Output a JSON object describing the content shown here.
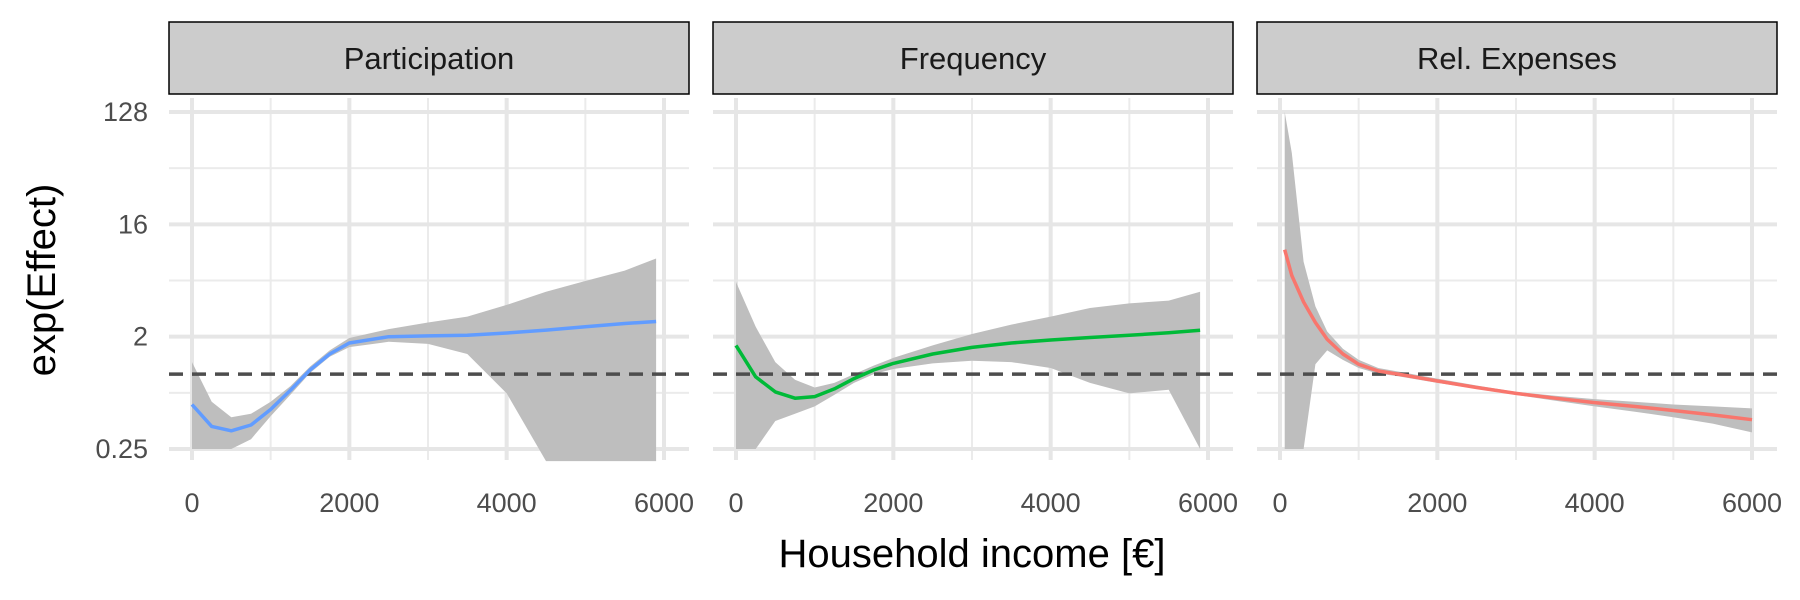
{
  "chart_data": {
    "type": "line",
    "ylabel": "exp(Effect)",
    "xlabel": "Household income [€]",
    "y_scale": "log2",
    "y_ticks": [
      0.25,
      2,
      16,
      128
    ],
    "y_tick_labels": [
      "0.25",
      "2",
      "16",
      "128"
    ],
    "ylim": [
      0.25,
      128
    ],
    "x_ticks": [
      0,
      2000,
      4000,
      6000
    ],
    "x_tick_labels": [
      "0",
      "2000",
      "4000",
      "6000"
    ],
    "xlim": [
      0,
      6000
    ],
    "reference_line": {
      "y": 1,
      "style": "dashed"
    },
    "grid": true,
    "panels": [
      {
        "title": "Participation",
        "color": "#619CFF",
        "x": [
          0,
          250,
          500,
          750,
          1000,
          1250,
          1500,
          1750,
          2000,
          2500,
          3000,
          3500,
          4000,
          4500,
          5000,
          5500,
          5900
        ],
        "y": [
          0.57,
          0.38,
          0.35,
          0.39,
          0.52,
          0.74,
          1.08,
          1.45,
          1.78,
          2.0,
          2.03,
          2.05,
          2.14,
          2.26,
          2.4,
          2.55,
          2.65
        ],
        "lower": [
          0.25,
          0.25,
          0.25,
          0.3,
          0.46,
          0.68,
          1.02,
          1.38,
          1.65,
          1.82,
          1.75,
          1.45,
          0.7,
          0.2,
          0.2,
          0.2,
          0.2
        ],
        "upper": [
          1.25,
          0.6,
          0.45,
          0.48,
          0.6,
          0.8,
          1.15,
          1.55,
          1.95,
          2.3,
          2.6,
          2.9,
          3.6,
          4.6,
          5.6,
          6.8,
          8.5
        ]
      },
      {
        "title": "Frequency",
        "color": "#00BA38",
        "x": [
          0,
          250,
          500,
          750,
          1000,
          1250,
          1500,
          1750,
          2000,
          2500,
          3000,
          3500,
          4000,
          4500,
          5000,
          5500,
          5900
        ],
        "y": [
          1.7,
          0.95,
          0.72,
          0.64,
          0.66,
          0.76,
          0.92,
          1.08,
          1.22,
          1.45,
          1.64,
          1.78,
          1.88,
          1.97,
          2.05,
          2.15,
          2.25
        ],
        "lower": [
          0.25,
          0.25,
          0.42,
          0.48,
          0.55,
          0.68,
          0.85,
          1.0,
          1.1,
          1.22,
          1.28,
          1.25,
          1.12,
          0.85,
          0.7,
          0.75,
          0.25
        ],
        "upper": [
          5.5,
          2.4,
          1.25,
          0.9,
          0.78,
          0.85,
          1.0,
          1.17,
          1.35,
          1.7,
          2.1,
          2.5,
          2.9,
          3.4,
          3.7,
          3.9,
          4.6
        ]
      },
      {
        "title": "Rel. Expenses",
        "color": "#F8766D",
        "x": [
          60,
          150,
          300,
          450,
          600,
          800,
          1000,
          1250,
          1500,
          2000,
          2500,
          3000,
          3500,
          4000,
          4500,
          5000,
          5500,
          6000
        ],
        "y": [
          10.0,
          6.2,
          3.8,
          2.6,
          1.9,
          1.45,
          1.2,
          1.06,
          1.0,
          0.88,
          0.78,
          0.7,
          0.64,
          0.59,
          0.55,
          0.51,
          0.47,
          0.43
        ],
        "lower": [
          0.25,
          0.25,
          0.25,
          1.2,
          1.55,
          1.3,
          1.12,
          1.01,
          0.96,
          0.85,
          0.76,
          0.68,
          0.61,
          0.55,
          0.5,
          0.45,
          0.4,
          0.34
        ],
        "upper": [
          128,
          60,
          8.0,
          3.5,
          2.2,
          1.6,
          1.3,
          1.12,
          1.05,
          0.92,
          0.81,
          0.72,
          0.67,
          0.63,
          0.6,
          0.57,
          0.55,
          0.53
        ]
      }
    ]
  }
}
